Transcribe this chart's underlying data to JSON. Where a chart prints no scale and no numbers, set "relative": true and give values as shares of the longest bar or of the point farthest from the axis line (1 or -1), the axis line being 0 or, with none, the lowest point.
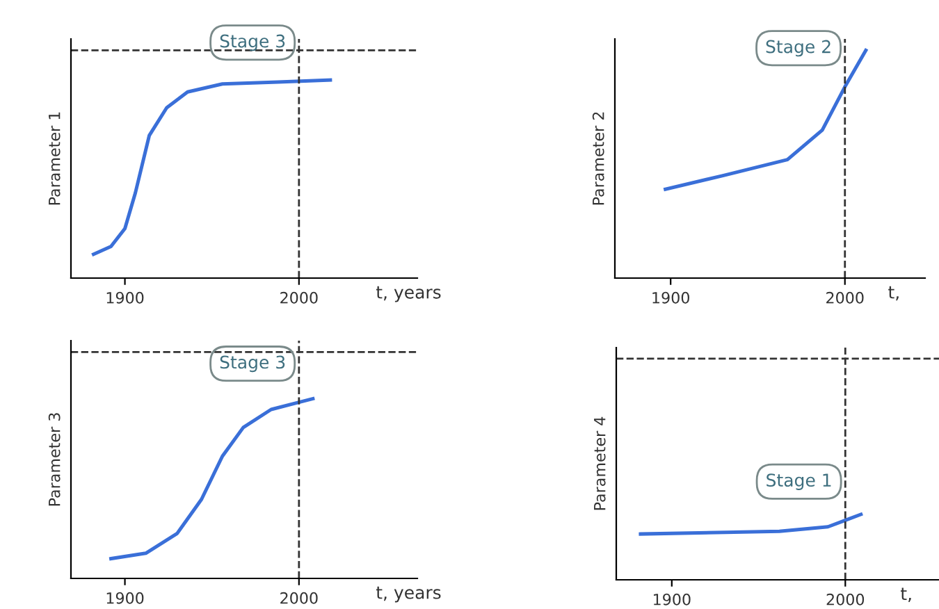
{
  "chart_data": [
    {
      "type": "line",
      "relative": true,
      "ylabel": "Parameter 1",
      "xlabel": "t, years",
      "x": [
        1882,
        1892,
        1900,
        1906,
        1914,
        1924,
        1936,
        1956,
        1988,
        2018
      ],
      "series": [
        {
          "color": "#3a6fd8",
          "values": [
            0.12,
            0.16,
            0.25,
            0.43,
            0.72,
            0.86,
            0.94,
            0.98,
            0.99,
            1.0
          ]
        }
      ],
      "xlim": [
        1869,
        2068
      ],
      "xticks": [
        1900,
        2000
      ],
      "grid": false,
      "marker": "none",
      "line_style": "solid",
      "ref_lines": [
        {
          "axis": "y",
          "value": 1.15,
          "color": "#333333",
          "line_style": "dashed"
        },
        {
          "axis": "x",
          "value": 2000,
          "color": "#333333",
          "line_style": "dashed"
        }
      ],
      "annotations": [
        "Stage 3"
      ]
    },
    {
      "type": "line",
      "relative": true,
      "ylabel": "Parameter 2",
      "xlabel": "t,",
      "x": [
        1897,
        1930,
        1967,
        1987,
        2000,
        2012
      ],
      "series": [
        {
          "color": "#3a6fd8",
          "values": [
            0.39,
            0.45,
            0.52,
            0.65,
            0.84,
            1.0
          ]
        }
      ],
      "xlim": [
        1868,
        2046
      ],
      "xticks": [
        1900,
        2000
      ],
      "grid": false,
      "marker": "none",
      "line_style": "solid",
      "ref_lines": [
        {
          "axis": "x",
          "value": 2000,
          "color": "#333333",
          "line_style": "dashed"
        }
      ],
      "annotations": [
        "Stage 2"
      ]
    },
    {
      "type": "line",
      "relative": true,
      "ylabel": "Parameter 3",
      "xlabel": "t, years",
      "x": [
        1892,
        1912,
        1930,
        1944,
        1956,
        1968,
        1984,
        2000,
        2008
      ],
      "series": [
        {
          "color": "#3a6fd8",
          "values": [
            0.11,
            0.14,
            0.25,
            0.44,
            0.68,
            0.84,
            0.94,
            0.98,
            1.0
          ]
        }
      ],
      "xlim": [
        1869,
        2068
      ],
      "xticks": [
        1900,
        2000
      ],
      "grid": false,
      "marker": "none",
      "line_style": "solid",
      "ref_lines": [
        {
          "axis": "y",
          "value": 1.26,
          "color": "#333333",
          "line_style": "dashed"
        },
        {
          "axis": "x",
          "value": 2000,
          "color": "#333333",
          "line_style": "dashed"
        }
      ],
      "annotations": [
        "Stage 3"
      ]
    },
    {
      "type": "line",
      "relative": true,
      "ylabel": "Parameter 4",
      "xlabel": "t,",
      "x": [
        1882,
        1962,
        1990,
        2000,
        2009
      ],
      "series": [
        {
          "color": "#3a6fd8",
          "values": [
            0.7,
            0.74,
            0.81,
            0.91,
            1.0
          ]
        }
      ],
      "xlim": [
        1868,
        2054
      ],
      "xticks": [
        1900,
        2000
      ],
      "grid": false,
      "marker": "none",
      "line_style": "solid",
      "ref_lines": [
        {
          "axis": "y",
          "value": 3.38,
          "color": "#333333",
          "line_style": "dashed"
        },
        {
          "axis": "x",
          "value": 2000,
          "color": "#333333",
          "line_style": "dashed"
        }
      ],
      "annotations": [
        "Stage 1"
      ]
    }
  ]
}
